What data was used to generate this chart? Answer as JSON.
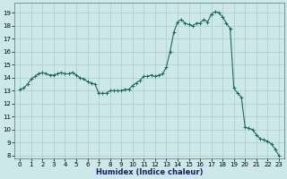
{
  "xlabel": "Humidex (Indice chaleur)",
  "ylabel": "",
  "background_color": "#cce8e8",
  "grid_color": "#aacccc",
  "line_color": "#1a6b5a",
  "xlim": [
    -0.5,
    23.5
  ],
  "ylim": [
    7.8,
    19.8
  ],
  "yticks": [
    8,
    9,
    10,
    11,
    12,
    13,
    14,
    15,
    16,
    17,
    18,
    19
  ],
  "xticks": [
    0,
    1,
    2,
    3,
    4,
    5,
    6,
    7,
    8,
    9,
    10,
    11,
    12,
    13,
    14,
    15,
    16,
    17,
    18,
    19,
    20,
    21,
    22,
    23
  ],
  "x": [
    0,
    0.33,
    0.67,
    1,
    1.33,
    1.67,
    2,
    2.33,
    2.67,
    3,
    3.33,
    3.67,
    4,
    4.33,
    4.67,
    5,
    5.33,
    5.67,
    6,
    6.33,
    6.67,
    7,
    7.33,
    7.67,
    8,
    8.33,
    8.67,
    9,
    9.33,
    9.67,
    10,
    10.33,
    10.67,
    11,
    11.33,
    11.67,
    12,
    12.33,
    12.67,
    13,
    13.33,
    13.67,
    14,
    14.33,
    14.67,
    15,
    15.33,
    15.67,
    16,
    16.33,
    16.67,
    17,
    17.33,
    17.67,
    18,
    18.33,
    18.67,
    19,
    19.33,
    19.67,
    20,
    20.33,
    20.67,
    21,
    21.33,
    21.67,
    22,
    22.33,
    22.67,
    23
  ],
  "y": [
    13.1,
    13.2,
    13.5,
    13.9,
    14.1,
    14.3,
    14.4,
    14.3,
    14.2,
    14.2,
    14.3,
    14.4,
    14.3,
    14.3,
    14.4,
    14.2,
    14.0,
    13.9,
    13.7,
    13.6,
    13.5,
    12.8,
    12.8,
    12.8,
    13.0,
    13.0,
    13.0,
    13.0,
    13.1,
    13.1,
    13.4,
    13.6,
    13.8,
    14.1,
    14.1,
    14.2,
    14.1,
    14.2,
    14.3,
    14.8,
    16.0,
    17.5,
    18.3,
    18.5,
    18.2,
    18.1,
    18.0,
    18.2,
    18.2,
    18.5,
    18.3,
    18.9,
    19.1,
    19.0,
    18.7,
    18.2,
    17.8,
    13.2,
    12.8,
    12.5,
    10.2,
    10.1,
    10.0,
    9.6,
    9.3,
    9.2,
    9.1,
    8.9,
    8.5,
    8.0
  ],
  "marker": "+",
  "markersize": 3,
  "linewidth": 0.8
}
